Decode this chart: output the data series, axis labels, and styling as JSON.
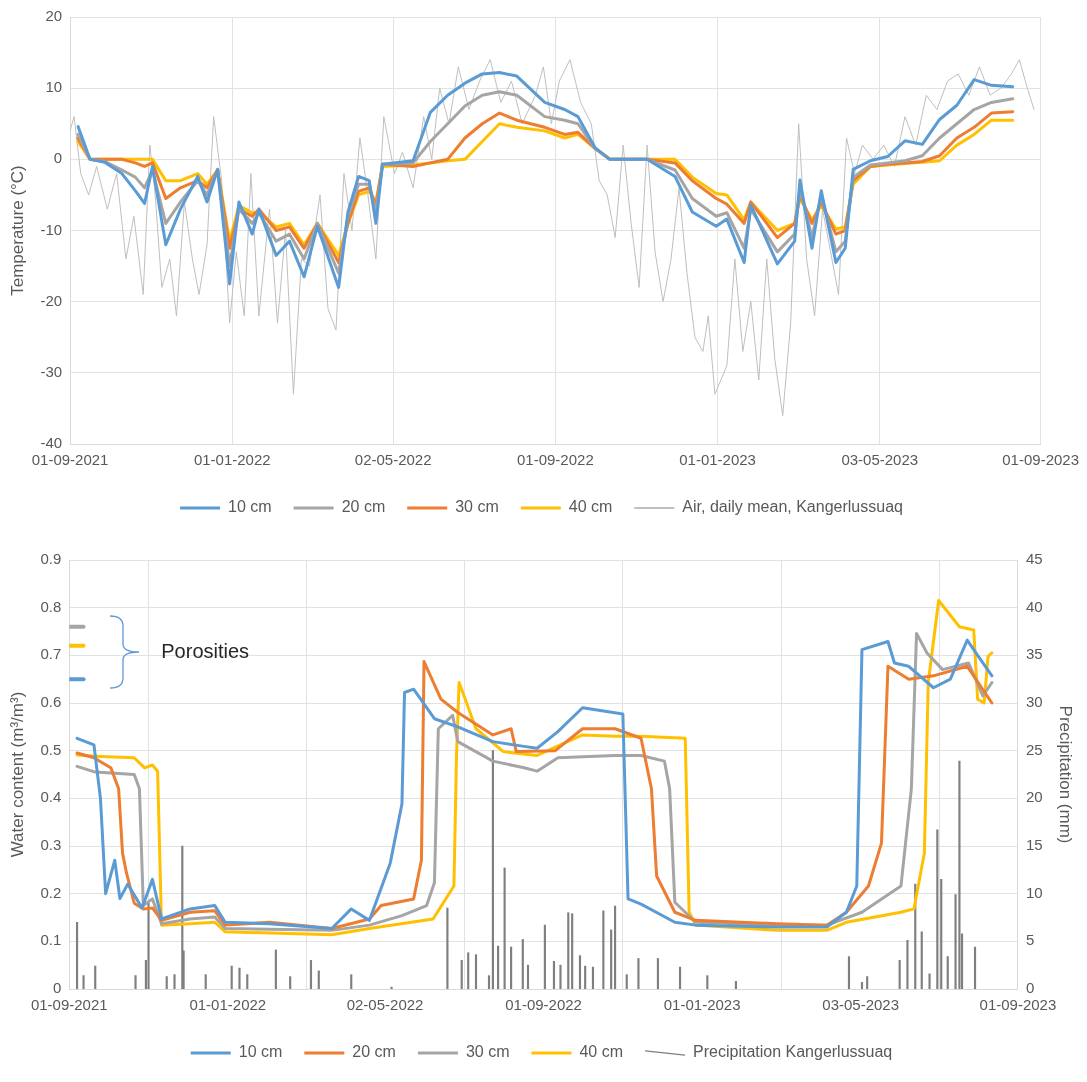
{
  "chart_data": [
    {
      "type": "line",
      "ylabel": "Temperature (°C)",
      "xlim": [
        "2021-09-01",
        "2023-09-01"
      ],
      "xticks": [
        {
          "value": "2021-09-01",
          "label": "01-09-2021"
        },
        {
          "value": "2022-01-01",
          "label": "01-01-2022"
        },
        {
          "value": "2022-05-02",
          "label": "02-05-2022"
        },
        {
          "value": "2022-09-01",
          "label": "01-09-2022"
        },
        {
          "value": "2023-01-01",
          "label": "01-01-2023"
        },
        {
          "value": "2023-05-03",
          "label": "03-05-2023"
        },
        {
          "value": "2023-09-01",
          "label": "01-09-2023"
        }
      ],
      "ylim": [
        -40,
        20
      ],
      "yticks": [
        -40,
        -30,
        -20,
        -10,
        0,
        10,
        20
      ],
      "grid": true,
      "legend": "bottom",
      "x": [
        "2021-09-07",
        "2021-09-16",
        "2021-09-27",
        "2021-10-10",
        "2021-10-20",
        "2021-10-27",
        "2021-11-02",
        "2021-11-12",
        "2021-11-23",
        "2021-12-06",
        "2021-12-13",
        "2021-12-21",
        "2021-12-30",
        "2022-01-06",
        "2022-01-16",
        "2022-01-21",
        "2022-02-03",
        "2022-02-13",
        "2022-02-24",
        "2022-03-06",
        "2022-03-22",
        "2022-03-29",
        "2022-04-06",
        "2022-04-14",
        "2022-04-19",
        "2022-04-24",
        "2022-05-17",
        "2022-05-30",
        "2022-06-12",
        "2022-06-25",
        "2022-07-08",
        "2022-07-21",
        "2022-08-03",
        "2022-08-24",
        "2022-09-08",
        "2022-09-18",
        "2022-10-01",
        "2022-10-12",
        "2022-11-09",
        "2022-11-30",
        "2022-12-13",
        "2022-12-31",
        "2023-01-08",
        "2023-01-21",
        "2023-01-26",
        "2023-02-15",
        "2023-02-28",
        "2023-03-04",
        "2023-03-13",
        "2023-03-20",
        "2023-03-31",
        "2023-04-07",
        "2023-04-13",
        "2023-04-26",
        "2023-05-09",
        "2023-05-22",
        "2023-06-04",
        "2023-06-17",
        "2023-06-30",
        "2023-07-13",
        "2023-07-26",
        "2023-08-11"
      ],
      "series": [
        {
          "name": "10 cm",
          "color": "#5b9bd5",
          "values": [
            4.6,
            0,
            -0.4,
            -2,
            -4.4,
            -6.2,
            -1,
            -12,
            -7,
            -2.4,
            -6,
            -1.4,
            -17.5,
            -6,
            -10.5,
            -7,
            -13.5,
            -11.5,
            -16.5,
            -9.4,
            -18,
            -7.4,
            -2.4,
            -3,
            -9,
            -0.7,
            -0.2,
            6.6,
            9,
            10.7,
            12,
            12.2,
            11.7,
            8,
            7,
            6,
            1.6,
            0,
            0,
            -2.4,
            -7.4,
            -9.4,
            -8.4,
            -14.5,
            -6.4,
            -14.7,
            -11.5,
            -2.9,
            -12.5,
            -4.4,
            -14.5,
            -12.5,
            -1.4,
            -0.2,
            0.4,
            2.6,
            2.1,
            5.6,
            7.6,
            11.2,
            10.4,
            10.2
          ]
        },
        {
          "name": "20 cm",
          "color": "#a5a5a5",
          "values": [
            3.5,
            0,
            -0.3,
            -1.5,
            -2.5,
            -4,
            -1.5,
            -9,
            -6,
            -3,
            -5,
            -1.5,
            -15,
            -7,
            -9,
            -7.5,
            -11.5,
            -10.5,
            -14,
            -9,
            -16,
            -8,
            -3.5,
            -3.5,
            -7.5,
            -0.7,
            -0.5,
            2.5,
            5,
            7.5,
            9,
            9.5,
            9,
            6,
            5.5,
            5,
            1.5,
            0,
            0,
            -1.5,
            -5.5,
            -8,
            -7.5,
            -12.5,
            -7,
            -13,
            -10.5,
            -4,
            -11,
            -5,
            -13,
            -11.5,
            -2.5,
            -0.8,
            -0.5,
            -0.2,
            0.5,
            3,
            5,
            7,
            8,
            8.5
          ]
        },
        {
          "name": "30 cm",
          "color": "#ed7d31",
          "values": [
            3,
            0,
            0,
            0,
            -0.5,
            -1,
            -0.5,
            -5.5,
            -4,
            -3,
            -4,
            -1.5,
            -12.5,
            -7,
            -8,
            -7,
            -10,
            -9.5,
            -12.5,
            -9,
            -14.5,
            -9,
            -4.5,
            -4,
            -6.5,
            -0.7,
            -1,
            -0.5,
            0,
            3,
            5,
            6.5,
            5.5,
            4.5,
            3.5,
            3.8,
            1.5,
            0,
            0,
            -0.5,
            -3,
            -5.5,
            -6.3,
            -9,
            -6,
            -11,
            -9,
            -5,
            -9,
            -6,
            -10.5,
            -10,
            -3,
            -1,
            -0.7,
            -0.5,
            -0.3,
            0.5,
            3,
            4.5,
            6.5,
            6.7
          ]
        },
        {
          "name": "40 cm",
          "color": "#ffc000",
          "values": [
            2.5,
            0,
            0,
            0,
            0,
            0,
            0,
            -3,
            -3,
            -2,
            -3.5,
            -1.5,
            -11.5,
            -6.5,
            -7.5,
            -7.5,
            -9.5,
            -9,
            -12,
            -9,
            -13.5,
            -9,
            -5,
            -4.5,
            -6,
            -1,
            -0.8,
            -0.5,
            -0.2,
            0,
            2.5,
            5,
            4.5,
            4,
            3,
            3.5,
            1.5,
            0,
            0,
            0,
            -2.5,
            -4.8,
            -5,
            -8.5,
            -6,
            -10,
            -9,
            -5.5,
            -8.5,
            -6.5,
            -9.8,
            -9.5,
            -3.5,
            -1,
            -0.8,
            -0.6,
            -0.4,
            -0.2,
            2,
            3.5,
            5.5,
            5.5
          ]
        },
        {
          "name": "Air, daily mean, Kangerlussuaq",
          "color": "#bfbfbf",
          "x": [
            "2021-09-01",
            "2021-09-04",
            "2021-09-09",
            "2021-09-15",
            "2021-09-21",
            "2021-09-29",
            "2021-10-06",
            "2021-10-13",
            "2021-10-19",
            "2021-10-26",
            "2021-10-31",
            "2021-11-04",
            "2021-11-09",
            "2021-11-15",
            "2021-11-20",
            "2021-11-26",
            "2021-12-02",
            "2021-12-07",
            "2021-12-13",
            "2021-12-18",
            "2021-12-24",
            "2021-12-30",
            "2022-01-04",
            "2022-01-10",
            "2022-01-15",
            "2022-01-21",
            "2022-01-29",
            "2022-02-04",
            "2022-02-10",
            "2022-02-16",
            "2022-02-22",
            "2022-02-28",
            "2022-03-08",
            "2022-03-14",
            "2022-03-20",
            "2022-03-26",
            "2022-04-01",
            "2022-04-07",
            "2022-04-13",
            "2022-04-19",
            "2022-04-25",
            "2022-05-03",
            "2022-05-09",
            "2022-05-17",
            "2022-05-25",
            "2022-05-31",
            "2022-06-06",
            "2022-06-13",
            "2022-06-20",
            "2022-06-28",
            "2022-07-06",
            "2022-07-14",
            "2022-07-22",
            "2022-07-30",
            "2022-08-07",
            "2022-08-17",
            "2022-08-23",
            "2022-08-29",
            "2022-09-04",
            "2022-09-12",
            "2022-09-20",
            "2022-09-28",
            "2022-10-04",
            "2022-10-10",
            "2022-10-16",
            "2022-10-22",
            "2022-10-28",
            "2022-11-03",
            "2022-11-09",
            "2022-11-15",
            "2022-11-21",
            "2022-11-27",
            "2022-12-03",
            "2022-12-09",
            "2022-12-15",
            "2022-12-21",
            "2022-12-25",
            "2022-12-30",
            "2023-01-08",
            "2023-01-14",
            "2023-01-20",
            "2023-01-26",
            "2023-02-01",
            "2023-02-07",
            "2023-02-13",
            "2023-02-19",
            "2023-02-25",
            "2023-03-03",
            "2023-03-09",
            "2023-03-15",
            "2023-03-21",
            "2023-03-27",
            "2023-04-02",
            "2023-04-08",
            "2023-04-14",
            "2023-04-20",
            "2023-04-28",
            "2023-05-06",
            "2023-05-14",
            "2023-05-22",
            "2023-05-30",
            "2023-06-07",
            "2023-06-15",
            "2023-06-23",
            "2023-07-01",
            "2023-07-09",
            "2023-07-17",
            "2023-07-25",
            "2023-08-02",
            "2023-08-10",
            "2023-08-16",
            "2023-08-22",
            "2023-08-27"
          ],
          "values": [
            4,
            6,
            -2,
            -5,
            -1,
            -7,
            -2,
            -14,
            -8,
            -19,
            2,
            -5,
            -18,
            -14,
            -22,
            -6,
            -14,
            -19,
            -12,
            6,
            -3,
            -23,
            -13,
            -22,
            -2,
            -22,
            -7,
            -23,
            -10,
            -33,
            -14,
            -15,
            -5,
            -21,
            -24,
            -2,
            -10,
            3,
            -5,
            -14,
            6,
            -2,
            1,
            -4,
            6,
            0,
            10,
            5,
            13,
            7,
            11,
            14,
            8,
            11,
            5,
            9,
            13,
            5,
            11,
            14,
            8,
            5,
            -3,
            -5,
            -11,
            2,
            -9,
            -18,
            2,
            -13,
            -20,
            -14,
            -4,
            -16,
            -25,
            -27,
            -22,
            -33,
            -29,
            -14,
            -27,
            -20,
            -31,
            -14,
            -28,
            -36,
            -23,
            5,
            -14,
            -22,
            -7,
            -13,
            -19,
            3,
            -2,
            2,
            0,
            2,
            -1,
            6,
            2,
            9,
            7,
            11,
            12,
            9,
            13,
            9,
            10,
            12,
            14,
            10,
            7
          ]
        }
      ]
    },
    {
      "type": "line",
      "ylabel": "Water content (m³/m³)",
      "y2label": "Precipitation (mm)",
      "xlim": [
        "2021-09-01",
        "2023-09-01"
      ],
      "xticks": [
        {
          "value": "2021-09-01",
          "label": "01-09-2021"
        },
        {
          "value": "2022-01-01",
          "label": "01-01-2022"
        },
        {
          "value": "2022-05-02",
          "label": "02-05-2022"
        },
        {
          "value": "2022-09-01",
          "label": "01-09-2022"
        },
        {
          "value": "2023-01-01",
          "label": "01-01-2023"
        },
        {
          "value": "2023-05-03",
          "label": "03-05-2023"
        },
        {
          "value": "2023-09-01",
          "label": "01-09-2023"
        }
      ],
      "ylim": [
        0,
        0.9
      ],
      "yticks": [
        0,
        0.1,
        0.2,
        0.3,
        0.4,
        0.5,
        0.6,
        0.7,
        0.8,
        0.9
      ],
      "y2lim": [
        0,
        45
      ],
      "y2ticks": [
        0,
        5,
        10,
        15,
        20,
        25,
        30,
        35,
        40,
        45
      ],
      "grid": true,
      "legend": "bottom",
      "annotations": [
        "Porosities"
      ],
      "series": [
        {
          "name": "10 cm",
          "color": "#5b9bd5",
          "x": [
            "2021-09-07",
            "2021-09-20",
            "2021-09-25",
            "2021-09-29",
            "2021-10-06",
            "2021-10-10",
            "2021-10-16",
            "2021-10-27",
            "2021-11-04",
            "2021-11-11",
            "2021-12-03",
            "2021-12-22",
            "2021-12-30",
            "2022-02-02",
            "2022-03-22",
            "2022-04-06",
            "2022-04-20",
            "2022-05-06",
            "2022-05-15",
            "2022-05-17",
            "2022-05-24",
            "2022-06-09",
            "2022-06-27",
            "2022-07-24",
            "2022-08-17",
            "2022-08-27",
            "2022-09-12",
            "2022-10-01",
            "2022-11-01",
            "2022-11-05",
            "2022-11-15",
            "2022-12-11",
            "2022-12-27",
            "2023-02-28",
            "2023-04-07",
            "2023-04-22",
            "2023-04-30",
            "2023-05-04",
            "2023-05-24",
            "2023-05-29",
            "2023-06-09",
            "2023-06-28",
            "2023-07-11",
            "2023-07-24",
            "2023-08-01",
            "2023-08-12"
          ],
          "values": [
            0.526,
            0.512,
            0.4,
            0.2,
            0.27,
            0.19,
            0.22,
            0.17,
            0.23,
            0.147,
            0.168,
            0.175,
            0.14,
            0.137,
            0.127,
            0.168,
            0.144,
            0.264,
            0.388,
            0.622,
            0.629,
            0.567,
            0.55,
            0.519,
            0.509,
            0.505,
            0.54,
            0.59,
            0.577,
            0.189,
            0.178,
            0.14,
            0.134,
            0.13,
            0.13,
            0.161,
            0.216,
            0.712,
            0.729,
            0.684,
            0.677,
            0.632,
            0.65,
            0.732,
            0.7,
            0.657
          ]
        },
        {
          "name": "20 cm",
          "color": "#ed7d31",
          "x": [
            "2021-09-07",
            "2021-09-20",
            "2021-10-03",
            "2021-10-09",
            "2021-10-12",
            "2021-10-15",
            "2021-10-21",
            "2021-10-28",
            "2021-11-04",
            "2021-11-11",
            "2021-12-03",
            "2021-12-22",
            "2021-12-30",
            "2022-02-02",
            "2022-03-22",
            "2022-04-20",
            "2022-04-29",
            "2022-05-24",
            "2022-05-30",
            "2022-06-01",
            "2022-06-14",
            "2022-06-27",
            "2022-07-24",
            "2022-08-07",
            "2022-08-11",
            "2022-09-10",
            "2022-10-01",
            "2022-10-26",
            "2022-11-15",
            "2022-11-23",
            "2022-11-27",
            "2022-12-11",
            "2022-12-27",
            "2023-02-28",
            "2023-04-07",
            "2023-04-22",
            "2023-05-09",
            "2023-05-19",
            "2023-05-24",
            "2023-06-09",
            "2023-06-28",
            "2023-07-24",
            "2023-08-12"
          ],
          "values": [
            0.495,
            0.485,
            0.464,
            0.42,
            0.285,
            0.244,
            0.18,
            0.168,
            0.17,
            0.144,
            0.161,
            0.164,
            0.134,
            0.14,
            0.127,
            0.147,
            0.175,
            0.189,
            0.27,
            0.687,
            0.608,
            0.58,
            0.533,
            0.546,
            0.498,
            0.5,
            0.546,
            0.546,
            0.526,
            0.42,
            0.237,
            0.161,
            0.144,
            0.137,
            0.134,
            0.161,
            0.216,
            0.306,
            0.677,
            0.65,
            0.657,
            0.677,
            0.6
          ]
        },
        {
          "name": "30 cm",
          "color": "#a5a5a5",
          "x": [
            "2021-09-07",
            "2021-09-21",
            "2021-10-21",
            "2021-10-25",
            "2021-10-28",
            "2021-11-04",
            "2021-11-11",
            "2021-12-03",
            "2021-12-22",
            "2021-12-30",
            "2022-03-22",
            "2022-04-20",
            "2022-05-15",
            "2022-06-03",
            "2022-06-09",
            "2022-06-12",
            "2022-06-23",
            "2022-06-27",
            "2022-07-24",
            "2022-08-17",
            "2022-08-27",
            "2022-09-12",
            "2022-10-26",
            "2022-11-15",
            "2022-12-03",
            "2022-12-07",
            "2022-12-11",
            "2022-12-27",
            "2023-02-28",
            "2023-04-07",
            "2023-05-04",
            "2023-06-03",
            "2023-06-11",
            "2023-06-15",
            "2023-06-23",
            "2023-07-05",
            "2023-07-25",
            "2023-08-05",
            "2023-08-12"
          ],
          "values": [
            0.467,
            0.455,
            0.45,
            0.42,
            0.175,
            0.189,
            0.137,
            0.147,
            0.151,
            0.127,
            0.123,
            0.134,
            0.154,
            0.175,
            0.223,
            0.546,
            0.574,
            0.519,
            0.478,
            0.464,
            0.457,
            0.485,
            0.49,
            0.49,
            0.478,
            0.42,
            0.182,
            0.14,
            0.134,
            0.134,
            0.161,
            0.216,
            0.42,
            0.746,
            0.705,
            0.67,
            0.684,
            0.615,
            0.643
          ]
        },
        {
          "name": "40 cm",
          "color": "#ffc000",
          "x": [
            "2021-09-07",
            "2021-09-25",
            "2021-10-21",
            "2021-10-29",
            "2021-11-04",
            "2021-11-08",
            "2021-11-11",
            "2021-12-03",
            "2021-12-22",
            "2021-12-30",
            "2022-03-22",
            "2022-04-20",
            "2022-06-08",
            "2022-06-24",
            "2022-06-26",
            "2022-06-28",
            "2022-07-11",
            "2022-08-01",
            "2022-08-27",
            "2022-10-01",
            "2022-10-26",
            "2022-11-15",
            "2022-12-19",
            "2022-12-22",
            "2022-12-27",
            "2023-02-28",
            "2023-04-07",
            "2023-04-22",
            "2023-06-03",
            "2023-06-13",
            "2023-06-21",
            "2023-06-24",
            "2023-07-02",
            "2023-07-18",
            "2023-07-29",
            "2023-08-01",
            "2023-08-06",
            "2023-08-09",
            "2023-08-12"
          ],
          "values": [
            0.491,
            0.488,
            0.485,
            0.464,
            0.47,
            0.457,
            0.134,
            0.137,
            0.14,
            0.12,
            0.114,
            0.127,
            0.147,
            0.216,
            0.49,
            0.643,
            0.546,
            0.498,
            0.49,
            0.533,
            0.53,
            0.53,
            0.526,
            0.161,
            0.134,
            0.123,
            0.123,
            0.14,
            0.161,
            0.168,
            0.285,
            0.643,
            0.815,
            0.76,
            0.753,
            0.608,
            0.6,
            0.698,
            0.705
          ]
        },
        {
          "name": "Precipitation Kangerlussuaq",
          "type": "bar",
          "axis": "y2",
          "color": "#7f7f7f",
          "x": [
            "2021-09-07",
            "2021-09-12",
            "2021-09-21",
            "2021-10-22",
            "2021-10-30",
            "2021-11-01",
            "2021-11-15",
            "2021-11-21",
            "2021-11-27",
            "2021-11-28",
            "2021-12-15",
            "2022-01-04",
            "2022-01-10",
            "2022-01-16",
            "2022-02-07",
            "2022-02-18",
            "2022-03-06",
            "2022-03-12",
            "2022-04-06",
            "2022-05-07",
            "2022-06-19",
            "2022-06-30",
            "2022-07-05",
            "2022-07-11",
            "2022-07-21",
            "2022-07-24",
            "2022-07-28",
            "2022-08-02",
            "2022-08-07",
            "2022-08-16",
            "2022-08-20",
            "2022-09-02",
            "2022-09-09",
            "2022-09-14",
            "2022-09-20",
            "2022-09-23",
            "2022-09-29",
            "2022-10-03",
            "2022-10-09",
            "2022-10-17",
            "2022-10-23",
            "2022-10-26",
            "2022-11-04",
            "2022-11-13",
            "2022-11-28",
            "2022-12-15",
            "2023-01-05",
            "2023-01-27",
            "2023-04-24",
            "2023-05-04",
            "2023-05-08",
            "2023-06-02",
            "2023-06-08",
            "2023-06-14",
            "2023-06-19",
            "2023-06-25",
            "2023-07-01",
            "2023-07-04",
            "2023-07-09",
            "2023-07-15",
            "2023-07-18",
            "2023-07-20",
            "2023-07-30"
          ],
          "values": [
            7,
            1.4,
            2.4,
            1.4,
            3,
            9,
            1.3,
            1.5,
            15,
            4,
            1.5,
            2.4,
            2.2,
            1.5,
            4.1,
            1.3,
            3,
            1.9,
            1.5,
            0.2,
            8.5,
            3,
            3.8,
            3.6,
            1.4,
            25,
            4.5,
            12.7,
            4.4,
            5.2,
            2.5,
            6.7,
            2.9,
            2.5,
            8,
            7.9,
            3.5,
            2.4,
            2.3,
            8.2,
            6.2,
            8.7,
            1.5,
            3.2,
            3.2,
            2.3,
            1.4,
            0.8,
            3.4,
            0.7,
            1.3,
            3,
            5.1,
            11,
            6,
            1.6,
            16.7,
            11.5,
            3.4,
            9.9,
            23.9,
            5.8,
            4.4
          ]
        },
        {
          "color": "#a5a5a5",
          "x": [
            "2021-09-01",
            "2021-09-12"
          ],
          "values": [
            0.76,
            0.76
          ]
        },
        {
          "color": "#ffc000",
          "x": [
            "2021-09-01",
            "2021-09-12"
          ],
          "values": [
            0.72,
            0.72
          ]
        },
        {
          "color": "#5b9bd5",
          "x": [
            "2021-09-01",
            "2021-09-12"
          ],
          "values": [
            0.65,
            0.65
          ]
        }
      ]
    }
  ]
}
